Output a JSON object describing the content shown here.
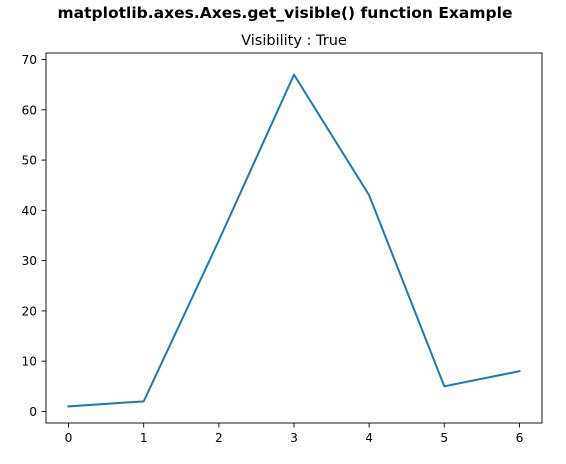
{
  "figure": {
    "suptitle": "matplotlib.axes.Axes.get_visible() function Example"
  },
  "chart_data": {
    "type": "line",
    "title": "Visibility : True",
    "xlabel": "",
    "ylabel": "",
    "x": [
      0,
      1,
      2,
      3,
      4,
      5,
      6
    ],
    "series": [
      {
        "values": [
          1,
          2,
          34,
          67,
          43,
          5,
          8
        ],
        "color": "#1f77b4"
      }
    ],
    "xticks": [
      0,
      1,
      2,
      3,
      4,
      5,
      6
    ],
    "yticks": [
      0,
      10,
      20,
      30,
      40,
      50,
      60,
      70
    ],
    "xlim": [
      -0.3,
      6.3
    ],
    "ylim": [
      -2.3,
      71.3
    ],
    "grid": false,
    "legend": "none"
  }
}
